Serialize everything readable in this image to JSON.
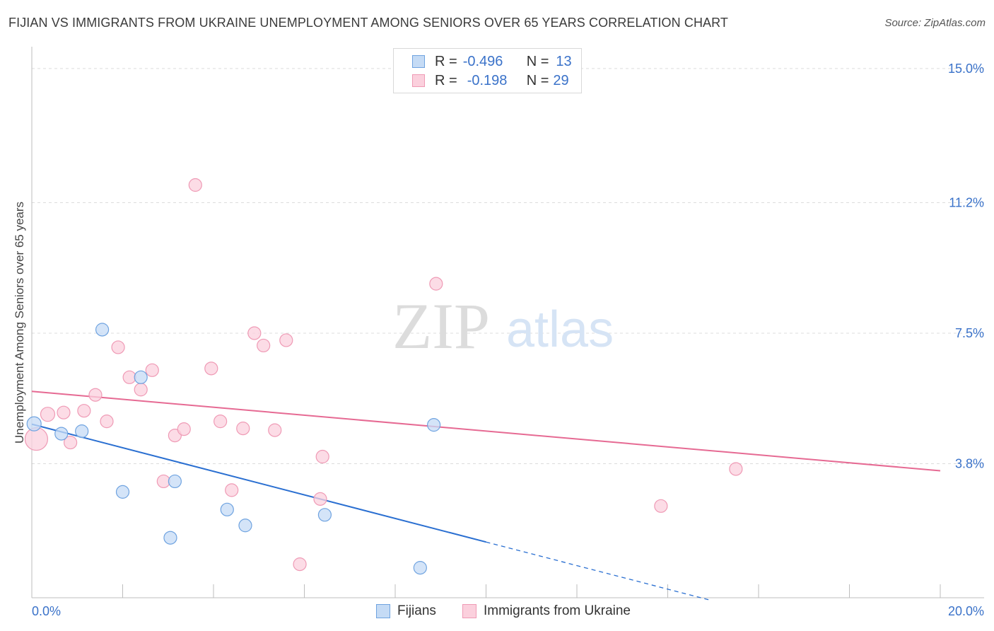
{
  "header": {
    "title": "FIJIAN VS IMMIGRANTS FROM UKRAINE UNEMPLOYMENT AMONG SENIORS OVER 65 YEARS CORRELATION CHART",
    "source": "Source: ZipAtlas.com"
  },
  "legend": {
    "row1": {
      "r_label": "R =",
      "r_value": "-0.496",
      "n_label": "N =",
      "n_value": "13"
    },
    "row2": {
      "r_label": "R =",
      "r_value": "-0.198",
      "n_label": "N =",
      "n_value": "29"
    }
  },
  "watermark": {
    "zip": "ZIP",
    "atlas": "atlas"
  },
  "chart_data": {
    "type": "scatter",
    "title": "FIJIAN VS IMMIGRANTS FROM UKRAINE UNEMPLOYMENT AMONG SENIORS OVER 65 YEARS CORRELATION CHART",
    "xlabel": "",
    "ylabel": "Unemployment Among Seniors over 65 years",
    "xlim": [
      0,
      20
    ],
    "ylim": [
      0,
      15.5
    ],
    "x_tick_labels": [
      "0.0%",
      "20.0%"
    ],
    "y_ticks": [
      3.8,
      7.5,
      11.2,
      15.0
    ],
    "y_tick_labels": [
      "3.8%",
      "7.5%",
      "11.2%",
      "15.0%"
    ],
    "grid": "horizontal dashed",
    "legend_position": "bottom-center",
    "series": [
      {
        "name": "Fijians",
        "color": "#6fa3e0",
        "fill": "#c5dbf5",
        "trend_color": "#2a6fd1",
        "r": -0.496,
        "n": 13,
        "trend": {
          "x0": 0,
          "y0": 4.92,
          "x1": 10,
          "y1": 1.58,
          "dashed_to_x": 14.9
        },
        "points": [
          {
            "x": 0.05,
            "y": 4.93,
            "s": 10
          },
          {
            "x": 0.65,
            "y": 4.65,
            "s": 9
          },
          {
            "x": 1.1,
            "y": 4.72,
            "s": 9
          },
          {
            "x": 1.55,
            "y": 7.6,
            "s": 9
          },
          {
            "x": 2.0,
            "y": 3.0,
            "s": 9
          },
          {
            "x": 2.4,
            "y": 6.25,
            "s": 9
          },
          {
            "x": 3.05,
            "y": 1.7,
            "s": 9
          },
          {
            "x": 3.15,
            "y": 3.3,
            "s": 9
          },
          {
            "x": 4.3,
            "y": 2.5,
            "s": 9
          },
          {
            "x": 4.7,
            "y": 2.05,
            "s": 9
          },
          {
            "x": 6.45,
            "y": 2.35,
            "s": 9
          },
          {
            "x": 8.55,
            "y": 0.85,
            "s": 9
          },
          {
            "x": 8.85,
            "y": 4.9,
            "s": 9
          }
        ]
      },
      {
        "name": "Immigrants from Ukraine",
        "color": "#ef9ab5",
        "fill": "#fbd0dd",
        "trend_color": "#e66a93",
        "r": -0.198,
        "n": 29,
        "trend": {
          "x0": 0,
          "y0": 5.85,
          "x1": 20,
          "y1": 3.6
        },
        "points": [
          {
            "x": 0.1,
            "y": 4.5,
            "s": 16
          },
          {
            "x": 0.35,
            "y": 5.2,
            "s": 10
          },
          {
            "x": 0.7,
            "y": 5.25,
            "s": 9
          },
          {
            "x": 0.85,
            "y": 4.4,
            "s": 9
          },
          {
            "x": 1.15,
            "y": 5.3,
            "s": 9
          },
          {
            "x": 1.4,
            "y": 5.75,
            "s": 9
          },
          {
            "x": 1.65,
            "y": 5.0,
            "s": 9
          },
          {
            "x": 1.9,
            "y": 7.1,
            "s": 9
          },
          {
            "x": 2.15,
            "y": 6.25,
            "s": 9
          },
          {
            "x": 2.4,
            "y": 5.9,
            "s": 9
          },
          {
            "x": 2.65,
            "y": 6.45,
            "s": 9
          },
          {
            "x": 2.9,
            "y": 3.3,
            "s": 9
          },
          {
            "x": 3.15,
            "y": 4.6,
            "s": 9
          },
          {
            "x": 3.35,
            "y": 4.78,
            "s": 9
          },
          {
            "x": 3.6,
            "y": 11.7,
            "s": 9
          },
          {
            "x": 3.95,
            "y": 6.5,
            "s": 9
          },
          {
            "x": 4.15,
            "y": 5.0,
            "s": 9
          },
          {
            "x": 4.4,
            "y": 3.05,
            "s": 9
          },
          {
            "x": 4.65,
            "y": 4.8,
            "s": 9
          },
          {
            "x": 4.9,
            "y": 7.5,
            "s": 9
          },
          {
            "x": 5.1,
            "y": 7.15,
            "s": 9
          },
          {
            "x": 5.35,
            "y": 4.75,
            "s": 9
          },
          {
            "x": 5.6,
            "y": 7.3,
            "s": 9
          },
          {
            "x": 5.9,
            "y": 0.95,
            "s": 9
          },
          {
            "x": 6.35,
            "y": 2.8,
            "s": 9
          },
          {
            "x": 6.4,
            "y": 4.0,
            "s": 9
          },
          {
            "x": 8.9,
            "y": 8.9,
            "s": 9
          },
          {
            "x": 13.85,
            "y": 2.6,
            "s": 9
          },
          {
            "x": 15.5,
            "y": 3.65,
            "s": 9
          }
        ]
      }
    ]
  }
}
